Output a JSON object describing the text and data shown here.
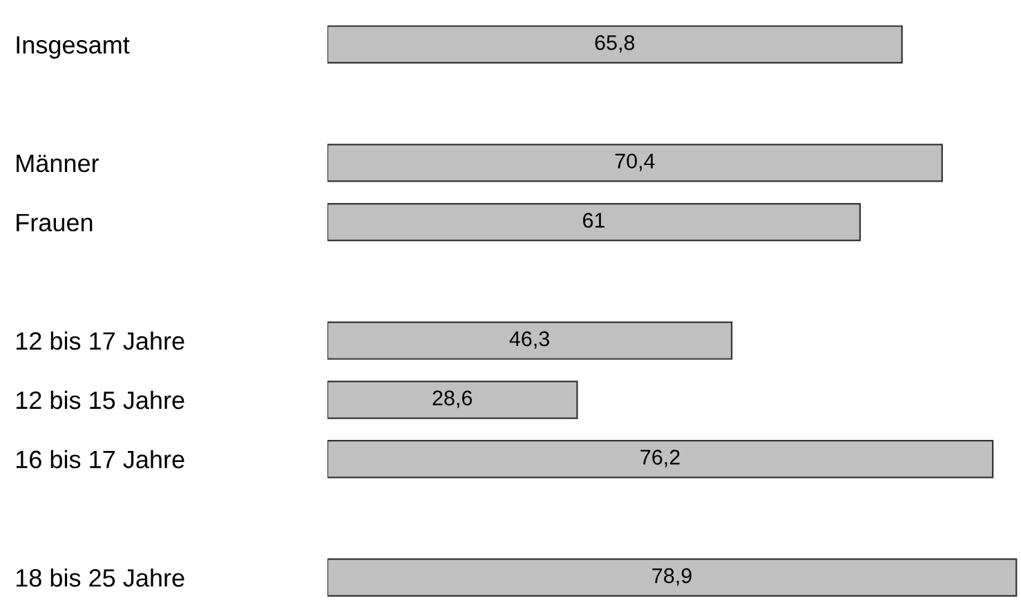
{
  "chart_data": {
    "type": "bar",
    "orientation": "horizontal",
    "categories": [
      "Insgesamt",
      null,
      "Männer",
      "Frauen",
      null,
      "12 bis 17 Jahre",
      "12 bis 15 Jahre",
      "16 bis 17 Jahre",
      null,
      "18 bis 25 Jahre"
    ],
    "values": [
      65.8,
      null,
      70.4,
      61,
      null,
      46.3,
      28.6,
      76.2,
      null,
      78.9
    ],
    "value_labels": [
      "65,8",
      null,
      "70,4",
      "61",
      null,
      "46,3",
      "28,6",
      "76,2",
      null,
      "78,9"
    ],
    "color": "#c0c0c0",
    "xlim": [
      0,
      79.2
    ],
    "tick_labels": "y",
    "grid": false,
    "legend": false
  }
}
